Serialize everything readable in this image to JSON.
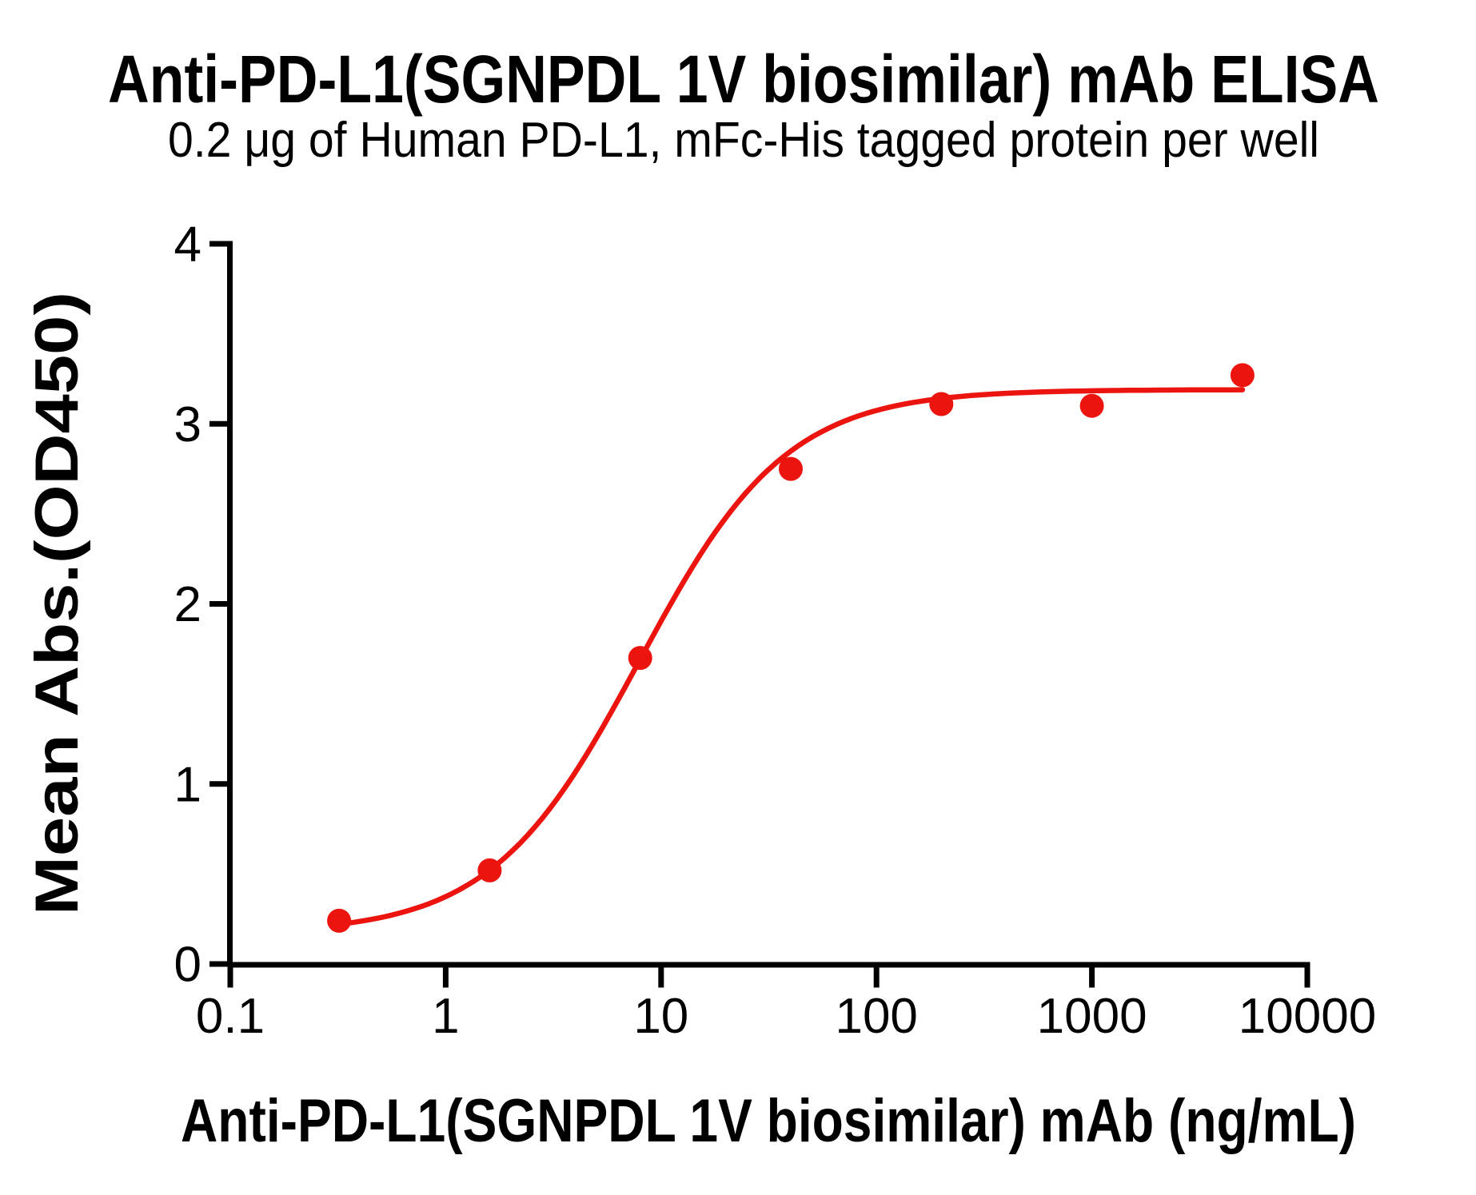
{
  "page": {
    "background_color": "#ffffff",
    "text_color": "#000000"
  },
  "chart_data": {
    "type": "scatter",
    "title": "Anti-PD-L1(SGNPDL 1V biosimilar) mAb ELISA",
    "subtitle": "0.2 μg of Human PD-L1, mFc-His tagged protein per well",
    "xlabel": "Anti-PD-L1(SGNPDL 1V biosimilar) mAb (ng/mL)",
    "ylabel": "Mean Abs.(OD450)",
    "x_scale": "log10",
    "xlim": [
      0.1,
      10000
    ],
    "ylim": [
      0,
      4
    ],
    "grid": false,
    "legend_position": "none",
    "axis_color": "#000000",
    "x_ticks": [
      0.1,
      1,
      10,
      100,
      1000,
      10000
    ],
    "x_tick_labels": [
      "0.1",
      "1",
      "10",
      "100",
      "1000",
      "10000"
    ],
    "y_ticks": [
      0,
      1,
      2,
      3,
      4
    ],
    "y_tick_labels": [
      "0",
      "1",
      "2",
      "3",
      "4"
    ],
    "series": [
      {
        "name": "Anti-PD-L1(SGNPDL 1V biosimilar) mAb",
        "marker": "circle",
        "color": "#EB140F",
        "x": [
          0.32,
          1.6,
          8,
          40,
          200,
          1000,
          5000
        ],
        "y": [
          0.24,
          0.52,
          1.7,
          2.75,
          3.11,
          3.1,
          3.27
        ]
      }
    ],
    "fit_curve": {
      "model": "4PL",
      "bottom": 0.17,
      "top": 3.19,
      "ec50": 7.9,
      "hill": 1.27,
      "x_range": [
        0.32,
        5000
      ],
      "color": "#EB140F"
    }
  }
}
